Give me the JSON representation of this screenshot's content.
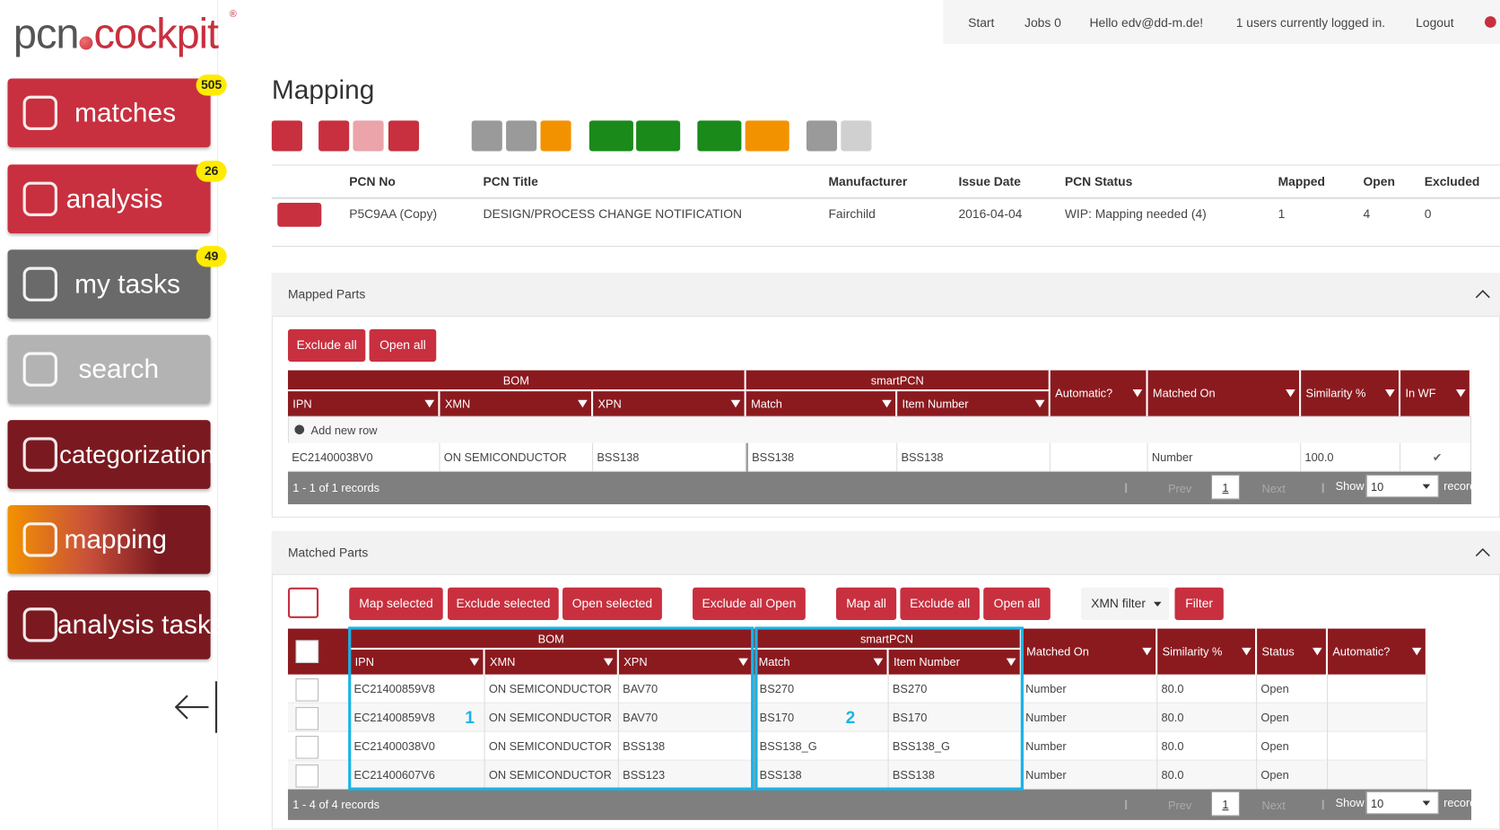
{
  "header": {
    "logo": [
      "pcn",
      "cockpit"
    ],
    "logo_mark": "®",
    "nav": [
      "Start",
      "Jobs 0",
      "Hello edv@dd-m.de!",
      "1 users currently logged in.",
      "Logout"
    ]
  },
  "sidebar": [
    {
      "label": "matches",
      "badge": 505
    },
    {
      "label": "analysis",
      "badge": 26
    },
    {
      "label": "my tasks",
      "badge": 49
    },
    {
      "label": "search"
    },
    {
      "label": "categorization"
    },
    {
      "label": "mapping"
    },
    {
      "label": "analysis tasks"
    }
  ],
  "page_title": "Mapping",
  "pcn_table": {
    "headers": [
      "PCN No",
      "PCN Title",
      "Manufacturer",
      "Issue Date",
      "PCN Status",
      "Mapped",
      "Open",
      "Excluded"
    ],
    "row": [
      "P5C9AA (Copy)",
      "DESIGN/PROCESS CHANGE NOTIFICATION",
      "Fairchild",
      "2016-04-04",
      "WIP: Mapping needed (4)",
      1,
      4,
      0
    ]
  },
  "mapped_parts": {
    "title": "Mapped Parts",
    "buttons": [
      "Exclude all",
      "Open all"
    ],
    "groups": [
      "BOM",
      "smartPCN"
    ],
    "columns": [
      "IPN",
      "XMN",
      "XPN",
      "Match",
      "Item Number",
      "Automatic?",
      "Matched On",
      "Similarity %",
      "In WF"
    ],
    "add_row": "Add new row",
    "rows": [
      [
        "EC21400038V0",
        "ON SEMICONDUCTOR",
        "BSS138",
        "BSS138",
        "BSS138",
        null,
        "Number",
        "100.0",
        "✔"
      ]
    ],
    "footer": "1 - 1 of 1 records",
    "pager": {
      "prev": "Prev",
      "page": "1",
      "next": "Next",
      "show": "Show",
      "size": "10",
      "records": "records"
    }
  },
  "matched_parts": {
    "title": "Matched Parts",
    "buttons": [
      "Map selected",
      "Exclude selected",
      "Open selected",
      "Exclude all Open",
      "Map all",
      "Exclude all",
      "Open all",
      "XMN filter",
      "Filter"
    ],
    "groups": [
      "BOM",
      "smartPCN"
    ],
    "columns": [
      "IPN",
      "XMN",
      "XPN",
      "Match",
      "Item Number",
      "Matched On",
      "Similarity %",
      "Status",
      "Automatic?"
    ],
    "rows": [
      [
        "EC21400859V8",
        "ON SEMICONDUCTOR",
        "BAV70",
        "BS270",
        "BS270",
        "Number",
        "80.0",
        "Open",
        null
      ],
      [
        "EC21400859V8",
        "ON SEMICONDUCTOR",
        "BAV70",
        "BS170",
        "BS170",
        "Number",
        "80.0",
        "Open",
        null
      ],
      [
        "EC21400038V0",
        "ON SEMICONDUCTOR",
        "BSS138",
        "BSS138_G",
        "BSS138_G",
        "Number",
        "80.0",
        "Open",
        null
      ],
      [
        "EC21400607V6",
        "ON SEMICONDUCTOR",
        "BSS123",
        "BSS138",
        "BSS138",
        "Number",
        "80.0",
        "Open",
        null
      ]
    ],
    "annotations": [
      "1",
      "2"
    ],
    "footer": "1 - 4 of 4 records",
    "pager": {
      "prev": "Prev",
      "page": "1",
      "next": "Next",
      "show": "Show",
      "size": "10",
      "records": "records"
    }
  }
}
